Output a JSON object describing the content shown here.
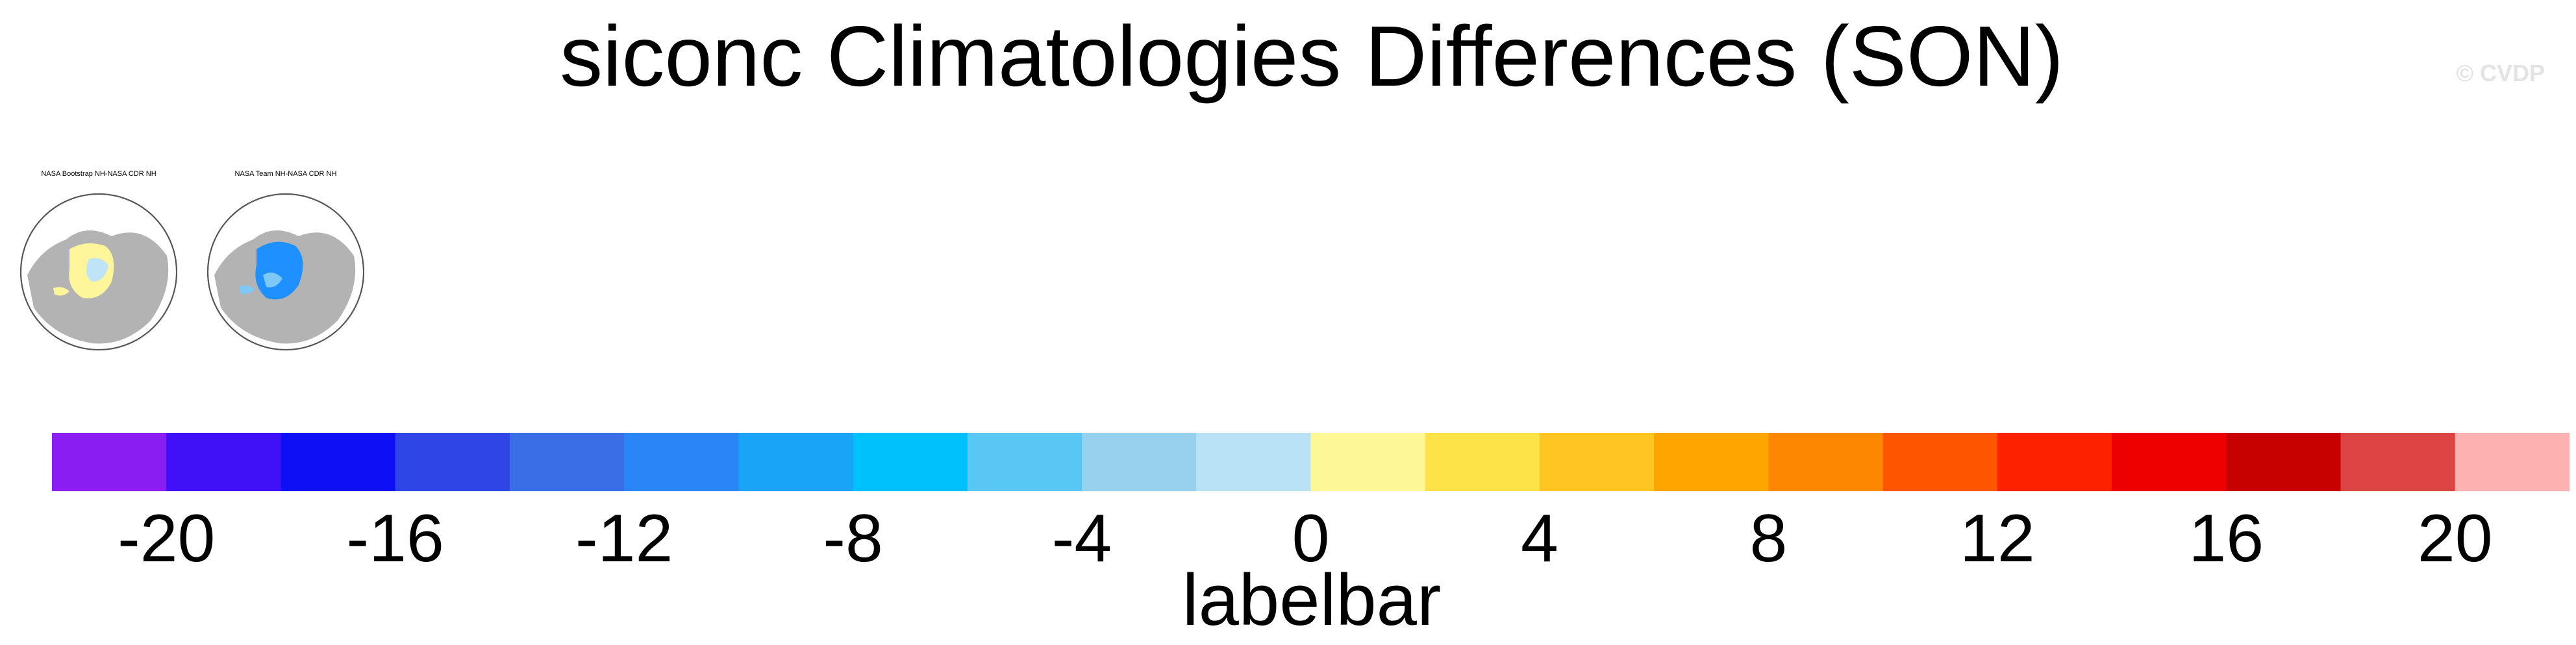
{
  "title": "siconc Climatologies Differences (SON)",
  "watermark": "© CVDP",
  "panels": [
    {
      "title": "NASA Bootstrap NH-NASA CDR NH",
      "fill": "#fff59a",
      "accent": "#bfe3f7"
    },
    {
      "title": "NASA Team NH-NASA CDR NH",
      "fill": "#1e90ff",
      "accent": "#7ec8f8"
    }
  ],
  "chart_data": {
    "type": "heatmap",
    "title": "siconc Climatologies Differences (SON)",
    "colorbar": {
      "label": "labelbar",
      "tick_labels": [
        "-20",
        "-16",
        "-12",
        "-8",
        "-4",
        "0",
        "4",
        "8",
        "12",
        "16",
        "20"
      ],
      "ticks": [
        -20,
        -16,
        -12,
        -8,
        -4,
        0,
        4,
        8,
        12,
        16,
        20
      ],
      "range": [
        -22,
        22
      ],
      "bin_width": 2,
      "colors": [
        "#8a1ef2",
        "#4010f6",
        "#0e0ff5",
        "#2f45e6",
        "#3a6ee7",
        "#2a86f6",
        "#19a4f8",
        "#00c1fb",
        "#58c7f4",
        "#98d1ee",
        "#b9e2f7",
        "#fdf795",
        "#fde248",
        "#fec523",
        "#fea500",
        "#fe8700",
        "#fe5600",
        "#fe2100",
        "#ee0000",
        "#c70000",
        "#dd4545",
        "#feb1b1"
      ]
    }
  }
}
